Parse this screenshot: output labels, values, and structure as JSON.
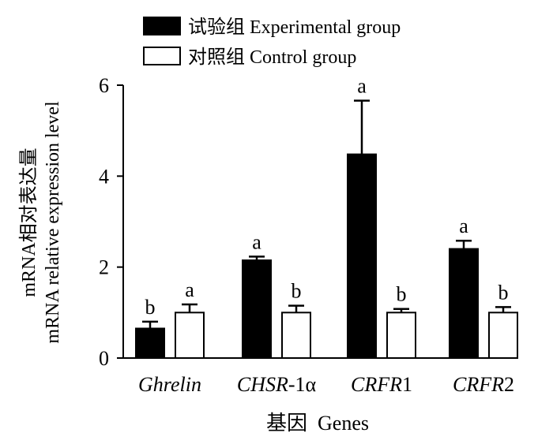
{
  "chart_data": {
    "type": "bar",
    "categories": [
      "Ghrelin",
      "CHSR-1α",
      "CRFR1",
      "CRFR2"
    ],
    "category_labels": [
      {
        "italic": "Ghrelin",
        "rest": ""
      },
      {
        "italic": "CHSR",
        "rest": "-1α"
      },
      {
        "italic": "CRFR",
        "rest": "1"
      },
      {
        "italic": "CRFR",
        "rest": "2"
      }
    ],
    "series": [
      {
        "name": "试验组 Experimental group",
        "color": "#000000",
        "values": [
          0.65,
          2.15,
          4.48,
          2.4
        ],
        "errors": [
          0.15,
          0.08,
          1.18,
          0.18
        ],
        "letters": [
          "b",
          "a",
          "a",
          "a"
        ]
      },
      {
        "name": "对照组 Control group",
        "color": "#ffffff",
        "values": [
          1.0,
          1.0,
          1.0,
          1.0
        ],
        "errors": [
          0.18,
          0.15,
          0.08,
          0.12
        ],
        "letters": [
          "a",
          "b",
          "b",
          "b"
        ]
      }
    ],
    "ylabel_cn": "mRNA相对表达量",
    "ylabel_en": "mRNA relative expression level",
    "xlabel": "基因  Genes",
    "ylim": [
      0,
      6
    ],
    "yticks": [
      "0",
      "2",
      "4",
      "6"
    ],
    "legend_position": "top-left"
  }
}
